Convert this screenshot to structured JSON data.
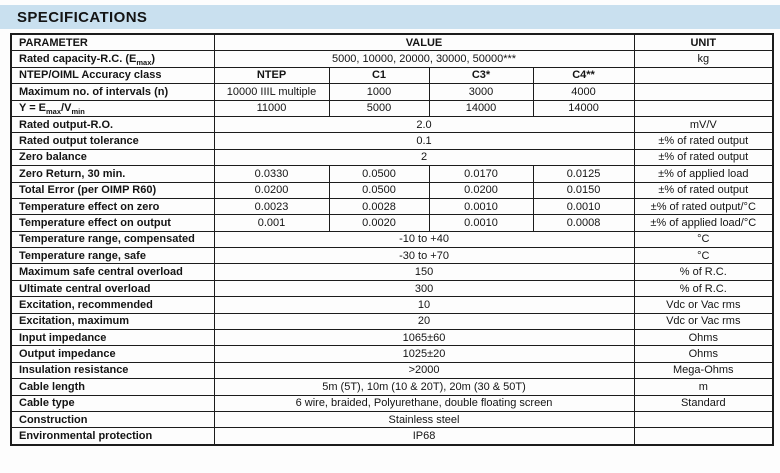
{
  "page": {
    "title": "SPECIFICATIONS",
    "band_color": "#c9e0ef",
    "border_color": "#1c1c1c"
  },
  "table": {
    "rows": [
      {
        "param": "PARAMETER",
        "cells": [
          {
            "t": "VALUE",
            "s": 4,
            "b": 1
          }
        ],
        "unit": "UNIT",
        "ub": 1
      },
      {
        "param": "Rated capacity-R.C. (E<sub>max</sub>)",
        "html": 1,
        "cells": [
          {
            "t": "5000, 10000, 20000, 30000, 50000***",
            "s": 4
          }
        ],
        "unit": "kg"
      },
      {
        "param": "NTEP/OIML Accuracy class",
        "cells": [
          {
            "t": "NTEP",
            "b": 1
          },
          {
            "t": "C1",
            "b": 1
          },
          {
            "t": "C3*",
            "b": 1
          },
          {
            "t": "C4**",
            "b": 1
          }
        ],
        "unit": ""
      },
      {
        "param": "Maximum no. of intervals (n)",
        "cells": [
          {
            "t": "10000 IIIL multiple"
          },
          {
            "t": "1000"
          },
          {
            "t": "3000"
          },
          {
            "t": "4000"
          }
        ],
        "unit": ""
      },
      {
        "param": "Y = E<sub>max</sub>/V<sub>min</sub>",
        "html": 1,
        "cells": [
          {
            "t": "11000"
          },
          {
            "t": "5000"
          },
          {
            "t": "14000"
          },
          {
            "t": "14000"
          }
        ],
        "unit": ""
      },
      {
        "param": "Rated output-R.O.",
        "cells": [
          {
            "t": "2.0",
            "s": 4
          }
        ],
        "unit": "mV/V"
      },
      {
        "param": "Rated output tolerance",
        "cells": [
          {
            "t": "0.1",
            "s": 4
          }
        ],
        "unit": "±% of rated output"
      },
      {
        "param": "Zero balance",
        "cells": [
          {
            "t": "2",
            "s": 4
          }
        ],
        "unit": "±% of rated output"
      },
      {
        "param": "Zero Return, 30 min.",
        "cells": [
          {
            "t": "0.0330"
          },
          {
            "t": "0.0500"
          },
          {
            "t": "0.0170"
          },
          {
            "t": "0.0125"
          }
        ],
        "unit": "±% of applied load"
      },
      {
        "param": "Total Error (per OIMP R60)",
        "cells": [
          {
            "t": "0.0200"
          },
          {
            "t": "0.0500"
          },
          {
            "t": "0.0200"
          },
          {
            "t": "0.0150"
          }
        ],
        "unit": "±% of rated output"
      },
      {
        "param": "Temperature effect on zero",
        "cells": [
          {
            "t": "0.0023"
          },
          {
            "t": "0.0028"
          },
          {
            "t": "0.0010"
          },
          {
            "t": "0.0010"
          }
        ],
        "unit": "±% of rated output/°C"
      },
      {
        "param": "Temperature effect on output",
        "cells": [
          {
            "t": "0.001"
          },
          {
            "t": "0.0020"
          },
          {
            "t": "0.0010"
          },
          {
            "t": "0.0008"
          }
        ],
        "unit": "±% of applied load/°C"
      },
      {
        "param": "Temperature range, compensated",
        "cells": [
          {
            "t": "-10 to +40",
            "s": 4
          }
        ],
        "unit": "°C"
      },
      {
        "param": "Temperature range, safe",
        "cells": [
          {
            "t": "-30 to +70",
            "s": 4
          }
        ],
        "unit": "°C"
      },
      {
        "param": "Maximum safe central overload",
        "cells": [
          {
            "t": "150",
            "s": 4
          }
        ],
        "unit": "% of R.C."
      },
      {
        "param": "Ultimate central overload",
        "cells": [
          {
            "t": "300",
            "s": 4
          }
        ],
        "unit": "% of R.C."
      },
      {
        "param": "Excitation, recommended",
        "cells": [
          {
            "t": "10",
            "s": 4
          }
        ],
        "unit": "Vdc or Vac rms"
      },
      {
        "param": "Excitation, maximum",
        "cells": [
          {
            "t": "20",
            "s": 4
          }
        ],
        "unit": "Vdc or Vac rms"
      },
      {
        "param": "Input impedance",
        "cells": [
          {
            "t": "1065±60",
            "s": 4
          }
        ],
        "unit": "Ohms"
      },
      {
        "param": "Output impedance",
        "cells": [
          {
            "t": "1025±20",
            "s": 4
          }
        ],
        "unit": "Ohms"
      },
      {
        "param": "Insulation resistance",
        "cells": [
          {
            "t": ">2000",
            "s": 4
          }
        ],
        "unit": "Mega-Ohms"
      },
      {
        "param": "Cable length",
        "cells": [
          {
            "t": "5m (5T), 10m (10 & 20T), 20m (30 & 50T)",
            "s": 4
          }
        ],
        "unit": "m"
      },
      {
        "param": "Cable type",
        "cells": [
          {
            "t": "6 wire, braided, Polyurethane, double floating screen",
            "s": 4
          }
        ],
        "unit": "Standard"
      },
      {
        "param": "Construction",
        "cells": [
          {
            "t": "Stainless steel",
            "s": 4
          }
        ],
        "unit": ""
      },
      {
        "param": "Environmental protection",
        "cells": [
          {
            "t": "IP68",
            "s": 4
          }
        ],
        "unit": ""
      }
    ]
  }
}
